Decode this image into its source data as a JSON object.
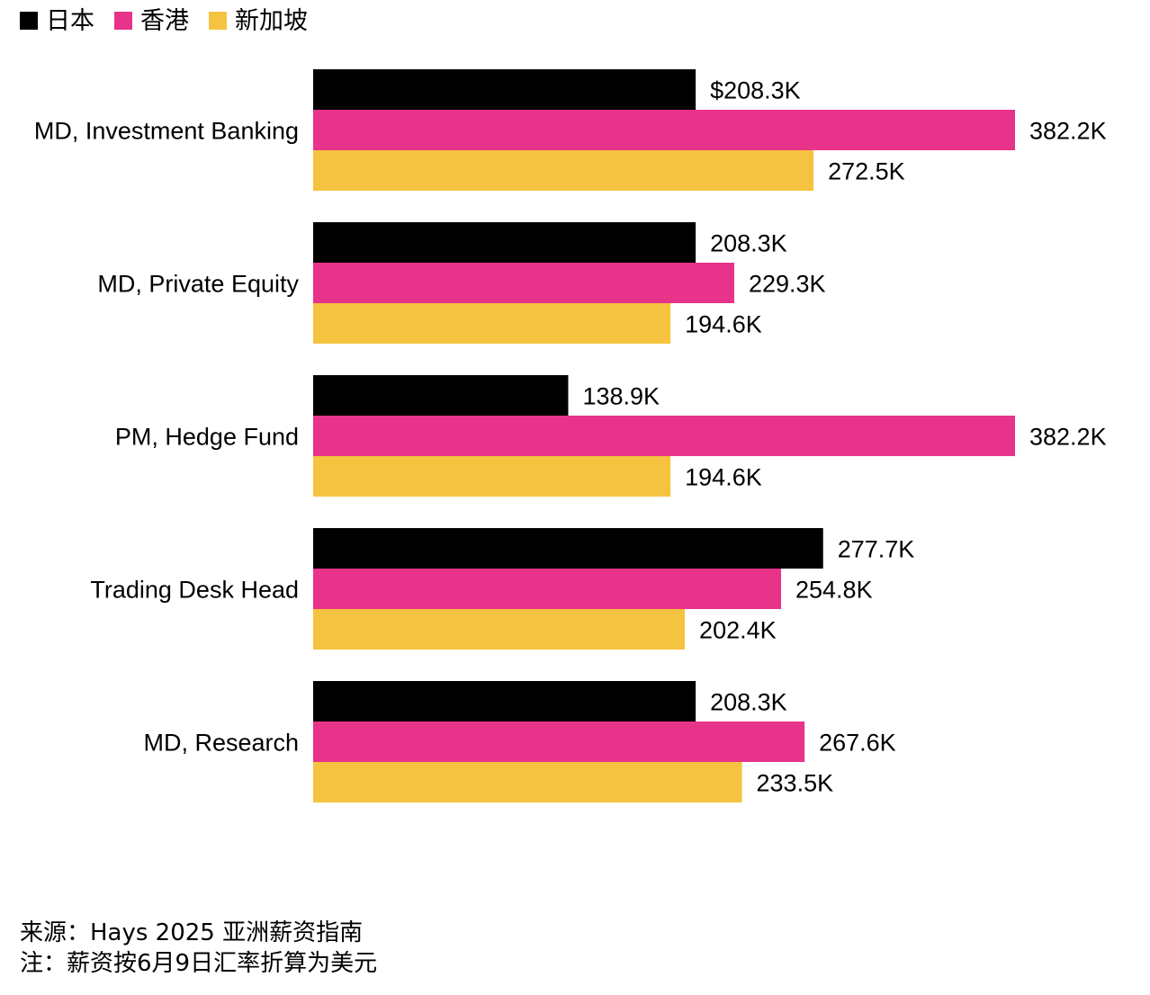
{
  "legend": [
    {
      "label": "日本",
      "color": "#000000"
    },
    {
      "label": "香港",
      "color": "#E8338B"
    },
    {
      "label": "新加坡",
      "color": "#F5C33F"
    }
  ],
  "chart_data": {
    "type": "bar",
    "orientation": "horizontal",
    "categories": [
      "MD, Investment Banking",
      "MD, Private Equity",
      "PM, Hedge Fund",
      "Trading Desk Head",
      "MD, Research"
    ],
    "series": [
      {
        "name": "日本",
        "color": "#000000",
        "values": [
          208.3,
          208.3,
          138.9,
          277.7,
          208.3
        ],
        "labels": [
          "$208.3K",
          "208.3K",
          "138.9K",
          "277.7K",
          "208.3K"
        ]
      },
      {
        "name": "香港",
        "color": "#E8338B",
        "values": [
          382.2,
          229.3,
          382.2,
          254.8,
          267.6
        ],
        "labels": [
          "382.2K",
          "229.3K",
          "382.2K",
          "254.8K",
          "267.6K"
        ]
      },
      {
        "name": "新加坡",
        "color": "#F5C33F",
        "values": [
          272.5,
          194.6,
          194.6,
          202.4,
          233.5
        ],
        "labels": [
          "272.5K",
          "194.6K",
          "194.6K",
          "202.4K",
          "233.5K"
        ]
      }
    ],
    "xlim": [
      0,
      382.2
    ],
    "grid": false,
    "legend_position": "top-left"
  },
  "footnote": {
    "source": "来源：Hays 2025 亚洲薪资指南",
    "note": "注：薪资按6月9日汇率折算为美元"
  }
}
